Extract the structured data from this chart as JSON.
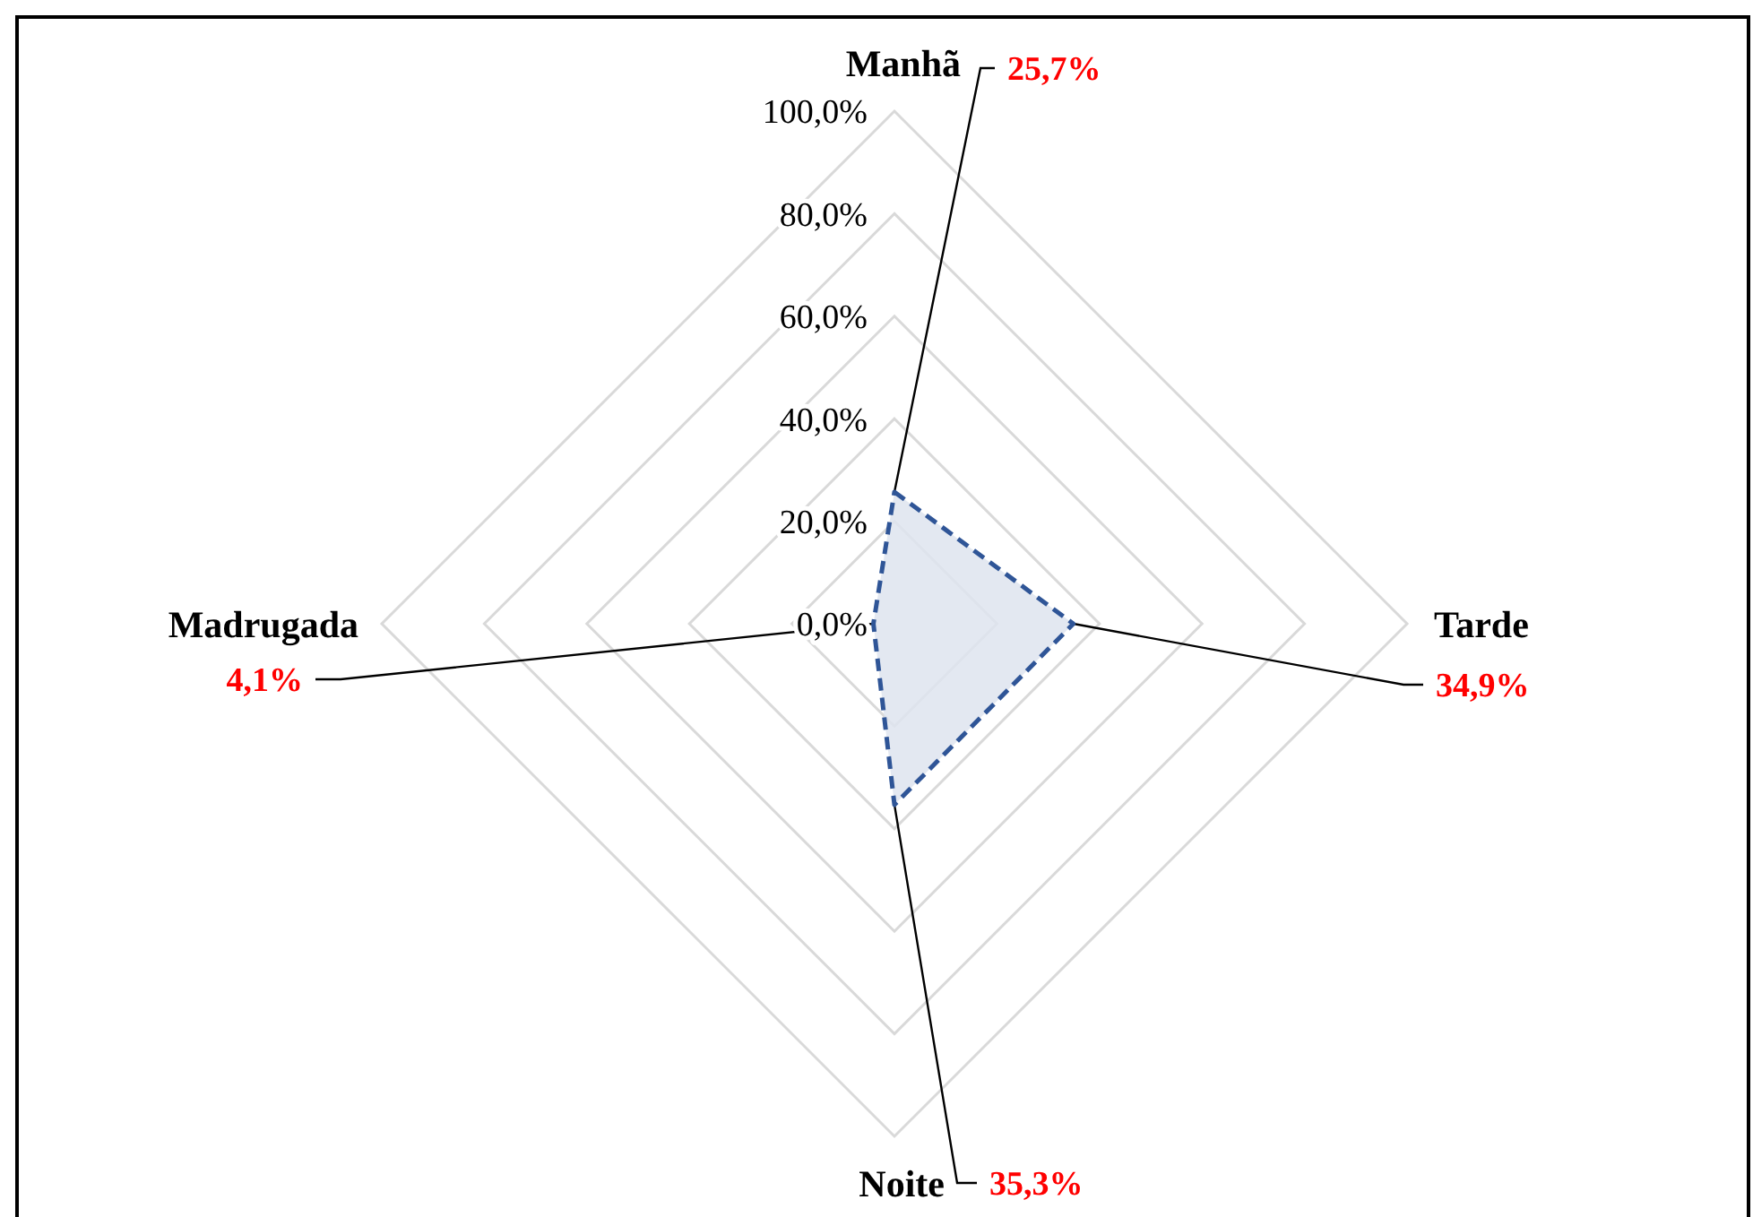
{
  "chart_data": {
    "type": "radar",
    "categories": [
      "Manhã",
      "Tarde",
      "Noite",
      "Madrugada"
    ],
    "series": [
      {
        "color": "#2f5597",
        "values": [
          25.7,
          34.9,
          35.3,
          4.1
        ],
        "value_labels": [
          "25,7%",
          "34,9%",
          "35,3%",
          "4,1%"
        ]
      }
    ],
    "ylim": [
      0,
      100
    ],
    "yticks": [
      {
        "value": 0,
        "label": "0,0%"
      },
      {
        "value": 20,
        "label": "20,0%"
      },
      {
        "value": 40,
        "label": "40,0%"
      },
      {
        "value": 60,
        "label": "60,0%"
      },
      {
        "value": 80,
        "label": "80,0%"
      },
      {
        "value": 100,
        "label": "100,0%"
      }
    ],
    "grid": true,
    "line_style": "dashed"
  }
}
